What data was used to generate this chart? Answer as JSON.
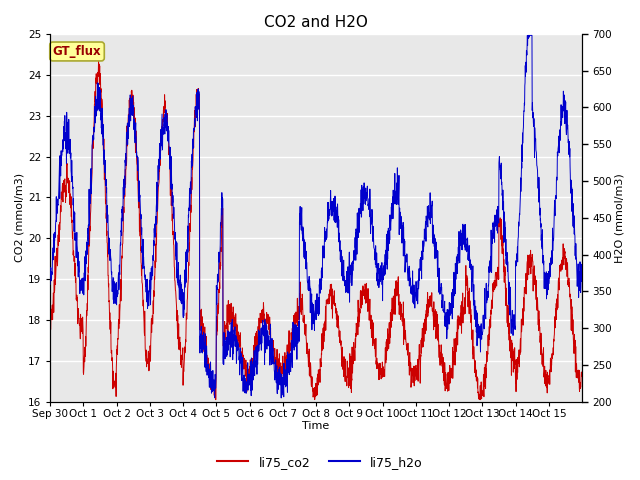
{
  "title": "CO2 and H2O",
  "xlabel": "Time",
  "ylabel_left": "CO2 (mmol/m3)",
  "ylabel_right": "H2O (mmol/m3)",
  "ylim_left": [
    16.0,
    25.0
  ],
  "ylim_right": [
    200,
    700
  ],
  "yticks_left": [
    16.0,
    17.0,
    18.0,
    19.0,
    20.0,
    21.0,
    22.0,
    23.0,
    24.0,
    25.0
  ],
  "yticks_right": [
    200,
    250,
    300,
    350,
    400,
    450,
    500,
    550,
    600,
    650,
    700
  ],
  "line_co2_color": "#cc0000",
  "line_h2o_color": "#0000cc",
  "legend_co2": "li75_co2",
  "legend_h2o": "li75_h2o",
  "annotation_text": "GT_flux",
  "annotation_bg": "#ffff99",
  "annotation_border": "#aaa830",
  "background_outer": "#ffffff",
  "background_inner": "#e8e8e8",
  "grid_color": "#ffffff",
  "title_fontsize": 11,
  "label_fontsize": 8,
  "tick_fontsize": 7.5,
  "legend_fontsize": 9
}
